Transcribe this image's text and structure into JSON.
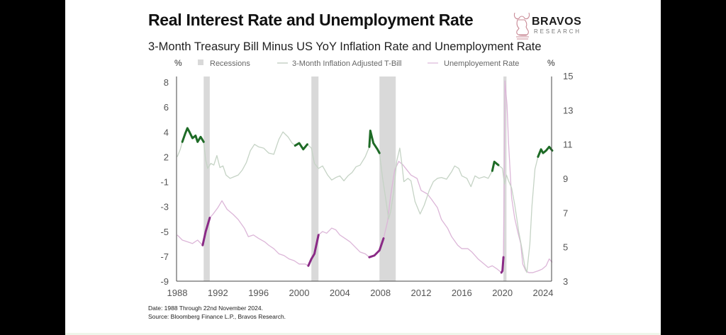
{
  "header": {
    "title": "Real Interest Rate and Unemployment Rate",
    "subtitle": "3-Month Treasury Bill Minus US YoY Inflation Rate and Unemployment Rate"
  },
  "logo": {
    "name": "BRAVOS",
    "sub": "RESEARCH",
    "icon": "bull-knight-icon"
  },
  "footer": {
    "date_note": "Date: 1988 Through 22nd November 2024.",
    "source_note": "Source: Bloomberg Finance L.P., Bravos Research."
  },
  "colors": {
    "recession": "#d9d9d9",
    "tbill": "#c5d3c5",
    "tbill_highlight": "#1e6b26",
    "unemployment": "#dcb6d8",
    "unemployment_highlight": "#8a2a86",
    "axis": "#444444",
    "tick_text": "#555555"
  },
  "chart_data": {
    "type": "line",
    "title": "Real Interest Rate and Unemployment Rate",
    "subtitle": "3-Month Treasury Bill Minus US YoY Inflation Rate and Unemployment Rate",
    "legend": {
      "placement": "top",
      "entries": [
        "Recessions",
        "3-Month Inflation Adjusted T-Bill",
        "Unemployement Rate"
      ]
    },
    "y_left": {
      "unit_label": "%",
      "ticks": [
        "8",
        "6",
        "4",
        "2",
        "-1",
        "-3",
        "-5",
        "-7",
        "-9"
      ]
    },
    "y_right": {
      "unit_label": "%",
      "ticks": [
        "15",
        "13",
        "11",
        "9",
        "7",
        "5",
        "3"
      ],
      "ylim": [
        3,
        15
      ]
    },
    "x": {
      "ticks": [
        "1988",
        "1992",
        "1996",
        "2000",
        "2004",
        "2008",
        "2012",
        "2016",
        "2020",
        "2024"
      ],
      "xlim": [
        1988,
        2024.9
      ]
    },
    "grid": false,
    "recessions": [
      [
        1990.6,
        1991.2
      ],
      [
        2001.2,
        2001.9
      ],
      [
        2007.9,
        2009.5
      ],
      [
        2020.1,
        2020.4
      ]
    ],
    "series": [
      {
        "name": "3-Month Inflation Adjusted T-Bill",
        "axis": "left",
        "points": [
          [
            1988.0,
            2.0
          ],
          [
            1988.3,
            2.6
          ],
          [
            1988.5,
            3.2
          ],
          [
            1988.8,
            3.9
          ],
          [
            1989.0,
            4.3
          ],
          [
            1989.2,
            4.0
          ],
          [
            1989.5,
            3.5
          ],
          [
            1989.8,
            3.7
          ],
          [
            1990.0,
            3.2
          ],
          [
            1990.3,
            3.6
          ],
          [
            1990.6,
            3.2
          ],
          [
            1990.8,
            1.6
          ],
          [
            1991.0,
            0.6
          ],
          [
            1991.3,
            1.2
          ],
          [
            1991.6,
            1.0
          ],
          [
            1991.9,
            2.1
          ],
          [
            1992.2,
            0.7
          ],
          [
            1992.5,
            0.9
          ],
          [
            1992.8,
            -0.2
          ],
          [
            1993.2,
            -0.6
          ],
          [
            1993.6,
            -0.4
          ],
          [
            1994.0,
            -0.2
          ],
          [
            1994.4,
            0.4
          ],
          [
            1994.8,
            1.3
          ],
          [
            1995.2,
            2.5
          ],
          [
            1995.6,
            3.0
          ],
          [
            1996.0,
            2.8
          ],
          [
            1996.5,
            2.7
          ],
          [
            1997.0,
            2.3
          ],
          [
            1997.5,
            2.2
          ],
          [
            1998.0,
            3.4
          ],
          [
            1998.4,
            4.0
          ],
          [
            1998.9,
            3.6
          ],
          [
            1999.3,
            3.1
          ],
          [
            1999.6,
            2.9
          ],
          [
            2000.0,
            3.1
          ],
          [
            2000.4,
            2.6
          ],
          [
            2000.8,
            3.0
          ],
          [
            2001.2,
            2.7
          ],
          [
            2001.5,
            1.2
          ],
          [
            2001.9,
            0.6
          ],
          [
            2002.3,
            0.9
          ],
          [
            2002.8,
            -0.2
          ],
          [
            2003.2,
            -0.8
          ],
          [
            2003.6,
            -0.5
          ],
          [
            2004.0,
            -0.3
          ],
          [
            2004.4,
            -0.9
          ],
          [
            2004.8,
            -0.3
          ],
          [
            2005.2,
            0.1
          ],
          [
            2005.6,
            0.8
          ],
          [
            2006.0,
            1.0
          ],
          [
            2006.5,
            2.0
          ],
          [
            2006.9,
            2.8
          ],
          [
            2007.0,
            4.1
          ],
          [
            2007.3,
            3.1
          ],
          [
            2007.7,
            2.6
          ],
          [
            2007.9,
            2.3
          ],
          [
            2008.2,
            -0.5
          ],
          [
            2008.5,
            -2.3
          ],
          [
            2008.8,
            -4.0
          ],
          [
            2009.0,
            -3.4
          ],
          [
            2009.3,
            -1.8
          ],
          [
            2009.6,
            1.5
          ],
          [
            2009.9,
            2.7
          ],
          [
            2010.1,
            1.2
          ],
          [
            2010.3,
            -1.0
          ],
          [
            2010.7,
            -0.6
          ],
          [
            2011.0,
            -0.9
          ],
          [
            2011.4,
            -2.6
          ],
          [
            2011.9,
            -3.6
          ],
          [
            2012.3,
            -2.9
          ],
          [
            2012.8,
            -1.7
          ],
          [
            2013.2,
            -1.0
          ],
          [
            2013.6,
            -0.6
          ],
          [
            2014.0,
            -0.5
          ],
          [
            2014.5,
            -0.7
          ],
          [
            2015.0,
            0.2
          ],
          [
            2015.3,
            0.9
          ],
          [
            2015.7,
            0.6
          ],
          [
            2016.0,
            -0.3
          ],
          [
            2016.5,
            -0.6
          ],
          [
            2016.9,
            -1.4
          ],
          [
            2017.3,
            -0.3
          ],
          [
            2017.7,
            -0.6
          ],
          [
            2018.2,
            -0.4
          ],
          [
            2018.6,
            -0.6
          ],
          [
            2019.0,
            0.3
          ],
          [
            2019.2,
            1.4
          ],
          [
            2019.6,
            1.0
          ],
          [
            2020.0,
            0.6
          ],
          [
            2020.2,
            -1.2
          ],
          [
            2020.4,
            -0.2
          ],
          [
            2020.6,
            -0.9
          ],
          [
            2020.9,
            -1.5
          ],
          [
            2021.2,
            -2.8
          ],
          [
            2021.6,
            -5.0
          ],
          [
            2021.9,
            -6.3
          ],
          [
            2022.2,
            -7.8
          ],
          [
            2022.4,
            -8.3
          ],
          [
            2022.7,
            -6.0
          ],
          [
            2022.9,
            -3.0
          ],
          [
            2023.2,
            0.5
          ],
          [
            2023.5,
            2.0
          ],
          [
            2023.8,
            2.6
          ],
          [
            2024.0,
            2.3
          ],
          [
            2024.3,
            2.5
          ],
          [
            2024.6,
            2.8
          ],
          [
            2024.9,
            2.5
          ]
        ],
        "highlight_ranges": [
          [
            1988.4,
            1990.6
          ],
          [
            1999.5,
            2000.9
          ],
          [
            2006.9,
            2007.9
          ],
          [
            2019.0,
            2019.8
          ],
          [
            2023.3,
            2024.9
          ]
        ]
      },
      {
        "name": "Unemployement Rate",
        "axis": "right",
        "points": [
          [
            1988.0,
            5.7
          ],
          [
            1988.5,
            5.4
          ],
          [
            1989.0,
            5.3
          ],
          [
            1989.5,
            5.2
          ],
          [
            1990.0,
            5.4
          ],
          [
            1990.5,
            5.1
          ],
          [
            1990.8,
            5.9
          ],
          [
            1991.2,
            6.7
          ],
          [
            1991.5,
            6.9
          ],
          [
            1992.0,
            7.3
          ],
          [
            1992.4,
            7.7
          ],
          [
            1992.9,
            7.2
          ],
          [
            1993.5,
            6.9
          ],
          [
            1994.0,
            6.6
          ],
          [
            1994.6,
            6.1
          ],
          [
            1995.0,
            5.6
          ],
          [
            1995.5,
            5.7
          ],
          [
            1996.0,
            5.5
          ],
          [
            1996.6,
            5.3
          ],
          [
            1997.0,
            5.1
          ],
          [
            1997.5,
            4.9
          ],
          [
            1998.0,
            4.6
          ],
          [
            1998.5,
            4.5
          ],
          [
            1999.0,
            4.3
          ],
          [
            1999.5,
            4.2
          ],
          [
            2000.0,
            4.0
          ],
          [
            2000.6,
            4.0
          ],
          [
            2000.9,
            3.9
          ],
          [
            2001.2,
            4.3
          ],
          [
            2001.5,
            4.6
          ],
          [
            2001.9,
            5.7
          ],
          [
            2002.3,
            5.9
          ],
          [
            2002.7,
            5.8
          ],
          [
            2003.2,
            6.1
          ],
          [
            2003.6,
            6.0
          ],
          [
            2004.0,
            5.7
          ],
          [
            2004.5,
            5.5
          ],
          [
            2005.0,
            5.3
          ],
          [
            2005.5,
            5.0
          ],
          [
            2006.0,
            4.7
          ],
          [
            2006.5,
            4.6
          ],
          [
            2006.9,
            4.4
          ],
          [
            2007.4,
            4.5
          ],
          [
            2007.9,
            4.8
          ],
          [
            2008.3,
            5.5
          ],
          [
            2008.7,
            6.5
          ],
          [
            2009.0,
            8.0
          ],
          [
            2009.4,
            9.5
          ],
          [
            2009.8,
            10.0
          ],
          [
            2010.2,
            9.8
          ],
          [
            2010.6,
            9.5
          ],
          [
            2011.0,
            9.2
          ],
          [
            2011.6,
            9.0
          ],
          [
            2012.0,
            8.3
          ],
          [
            2012.6,
            8.1
          ],
          [
            2013.0,
            7.8
          ],
          [
            2013.6,
            7.3
          ],
          [
            2014.0,
            6.6
          ],
          [
            2014.6,
            6.1
          ],
          [
            2015.0,
            5.6
          ],
          [
            2015.6,
            5.1
          ],
          [
            2016.0,
            4.9
          ],
          [
            2016.6,
            4.9
          ],
          [
            2017.0,
            4.7
          ],
          [
            2017.6,
            4.3
          ],
          [
            2018.0,
            4.1
          ],
          [
            2018.6,
            3.8
          ],
          [
            2019.0,
            3.9
          ],
          [
            2019.5,
            3.7
          ],
          [
            2019.9,
            3.5
          ],
          [
            2020.0,
            3.6
          ],
          [
            2020.1,
            4.4
          ],
          [
            2020.25,
            14.7
          ],
          [
            2020.45,
            13.3
          ],
          [
            2020.6,
            11.1
          ],
          [
            2020.9,
            7.9
          ],
          [
            2021.2,
            6.7
          ],
          [
            2021.5,
            5.9
          ],
          [
            2021.8,
            5.2
          ],
          [
            2022.0,
            4.0
          ],
          [
            2022.3,
            3.6
          ],
          [
            2022.6,
            3.5
          ],
          [
            2023.0,
            3.5
          ],
          [
            2023.5,
            3.6
          ],
          [
            2023.9,
            3.7
          ],
          [
            2024.3,
            3.9
          ],
          [
            2024.6,
            4.3
          ],
          [
            2024.9,
            4.1
          ]
        ],
        "highlight_ranges": [
          [
            1990.5,
            1991.2
          ],
          [
            2000.9,
            2001.9
          ],
          [
            2006.9,
            2008.3
          ],
          [
            2019.9,
            2020.1
          ]
        ]
      }
    ]
  }
}
